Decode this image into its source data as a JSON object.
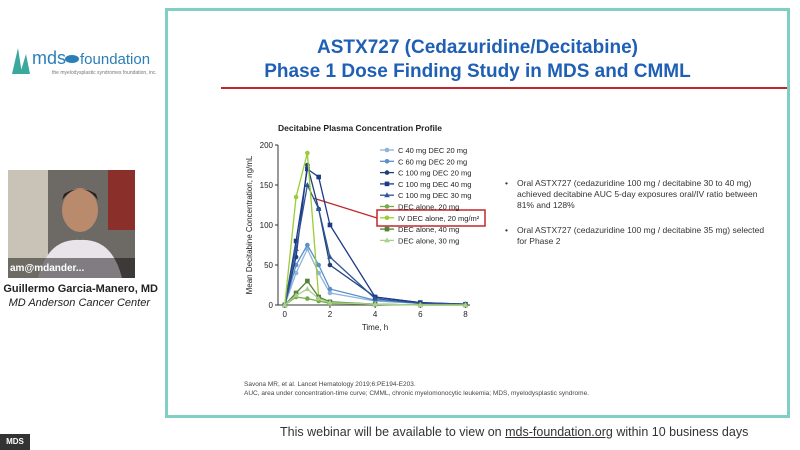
{
  "logo": {
    "mark": "mds",
    "word": "foundation",
    "tagline": "the myelodysplastic syndromes foundation, inc."
  },
  "speaker": {
    "overlay": "am@mdander...",
    "name": "Guillermo Garcia-Manero, MD",
    "affiliation": "MD Anderson Cancer Center"
  },
  "slide": {
    "title": [
      "ASTX727 (Cedazuridine/Decitabine)",
      "Phase 1 Dose Finding Study in MDS and CMML"
    ],
    "chart": {
      "type": "line",
      "title": "Decitabine Plasma Concentration Profile",
      "x_label": "Time, h",
      "y_label": "Mean Decitabine Concentration, ng/mL",
      "x": [
        0,
        0.5,
        1,
        1.5,
        2,
        4,
        6,
        8
      ],
      "xlim": [
        -0.3,
        8.2
      ],
      "xticks": [
        0,
        2,
        4,
        6,
        8
      ],
      "ylim": [
        0,
        200
      ],
      "yticks": [
        0,
        50,
        100,
        150,
        200
      ],
      "series": [
        {
          "name": "C 40 mg DEC 20 mg",
          "color": "#8fb4dc",
          "marker": "circle",
          "values": [
            0,
            40,
            70,
            40,
            15,
            5,
            2,
            1
          ]
        },
        {
          "name": "C 60 mg DEC 20 mg",
          "color": "#5b8fc9",
          "marker": "circle",
          "values": [
            0,
            50,
            75,
            50,
            20,
            6,
            2,
            1
          ]
        },
        {
          "name": "C 100 mg DEC 20 mg",
          "color": "#1f3f7a",
          "marker": "circle",
          "values": [
            0,
            60,
            175,
            120,
            50,
            10,
            3,
            1
          ]
        },
        {
          "name": "C 100 mg DEC 40 mg",
          "color": "#1c3a86",
          "marker": "square",
          "values": [
            0,
            80,
            170,
            160,
            100,
            10,
            3,
            1
          ]
        },
        {
          "name": "C 100 mg DEC 30 mg",
          "color": "#2e5597",
          "marker": "triangle",
          "values": [
            0,
            70,
            150,
            120,
            60,
            8,
            2,
            1
          ]
        },
        {
          "name": "DEC alone, 20 mg",
          "color": "#70ad47",
          "marker": "circle",
          "values": [
            0,
            10,
            8,
            5,
            2,
            1,
            0,
            0
          ]
        },
        {
          "name": "IV DEC alone, 20 mg/m²",
          "color": "#9acd32",
          "marker": "circle",
          "values": [
            0,
            135,
            190,
            10,
            3,
            1,
            0,
            0
          ]
        },
        {
          "name": "DEC alone, 40 mg",
          "color": "#548235",
          "marker": "square",
          "values": [
            0,
            15,
            30,
            10,
            4,
            1,
            0,
            0
          ]
        },
        {
          "name": "DEC alone, 30 mg",
          "color": "#a9d18e",
          "marker": "triangle",
          "values": [
            0,
            12,
            20,
            8,
            3,
            1,
            0,
            0
          ]
        }
      ]
    },
    "bullets": [
      "Oral ASTX727 (cedazuridine 100 mg / decitabine 30 to 40 mg) achieved decitabine AUC 5-day exposures oral/IV ratio between 81% and 128%",
      "Oral ASTX727 (cedazuridine 100 mg / decitabine 35 mg) selected for Phase 2"
    ],
    "references": [
      "Savona MR, et al. Lancet Hematology 2019;6:PE194-E203.",
      "AUC, area under concentration-time curve; CMML, chronic myelomonocytic leukemia; MDS, myelodysplastic syndrome."
    ]
  },
  "footer": {
    "before": "This webinar will be available to view on",
    "link": "mds-foundation.org",
    "after": "within 10 business days"
  },
  "badge": "MDS"
}
